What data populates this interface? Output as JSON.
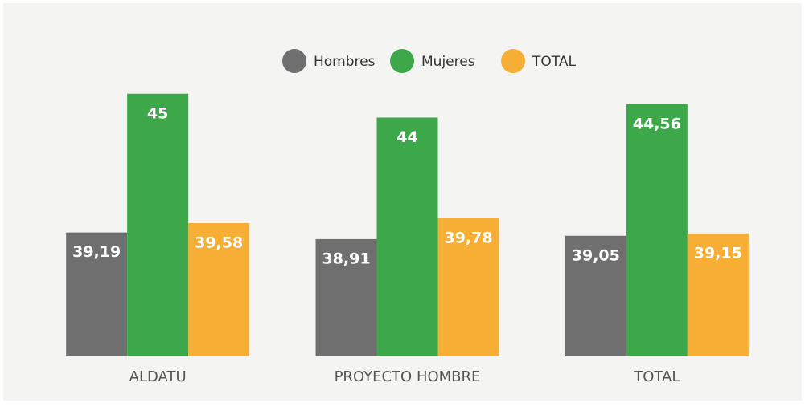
{
  "chart_data": {
    "type": "bar",
    "categories": [
      "ALDATU",
      "PROYECTO HOMBRE",
      "TOTAL"
    ],
    "series": [
      {
        "name": "Hombres",
        "color": "#706f6f",
        "values": [
          39.19,
          38.91,
          39.05
        ],
        "value_labels": [
          "39,19",
          "38,91",
          "39,05"
        ]
      },
      {
        "name": "Mujeres",
        "color": "#3da84a",
        "values": [
          45,
          44,
          44.56
        ],
        "value_labels": [
          "45",
          "44",
          "44,56"
        ]
      },
      {
        "name": "TOTAL",
        "color": "#f6ae35",
        "values": [
          39.58,
          39.78,
          39.15
        ],
        "value_labels": [
          "39,58",
          "39,78",
          "39,15"
        ]
      }
    ],
    "ylim": [
      34,
      46
    ],
    "legend": "top"
  }
}
